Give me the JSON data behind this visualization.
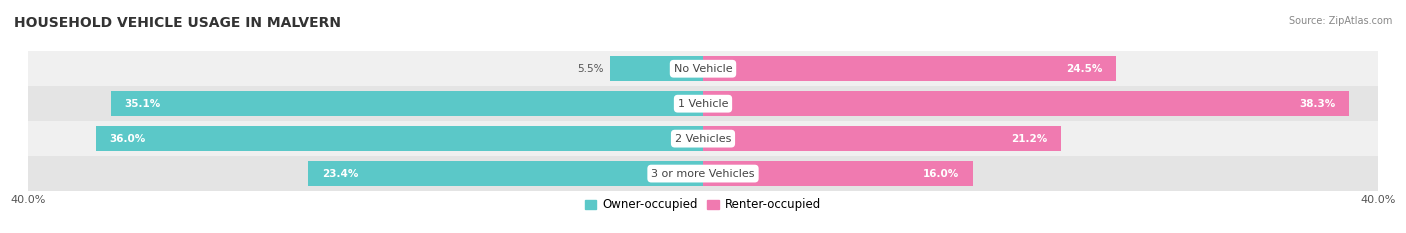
{
  "title": "HOUSEHOLD VEHICLE USAGE IN MALVERN",
  "source": "Source: ZipAtlas.com",
  "categories": [
    "No Vehicle",
    "1 Vehicle",
    "2 Vehicles",
    "3 or more Vehicles"
  ],
  "owner_values": [
    5.5,
    35.1,
    36.0,
    23.4
  ],
  "renter_values": [
    24.5,
    38.3,
    21.2,
    16.0
  ],
  "owner_color": "#5bc8c8",
  "renter_color": "#f07ab0",
  "owner_color_light": "#a8dede",
  "renter_color_light": "#f7b8d3",
  "owner_label": "Owner-occupied",
  "renter_label": "Renter-occupied",
  "title_fontsize": 10,
  "label_fontsize": 8,
  "xlim": 40.0,
  "bar_height": 0.72,
  "row_bg_even": "#f0f0f0",
  "row_bg_odd": "#e4e4e4",
  "row_border_color": "#d0d0d0"
}
